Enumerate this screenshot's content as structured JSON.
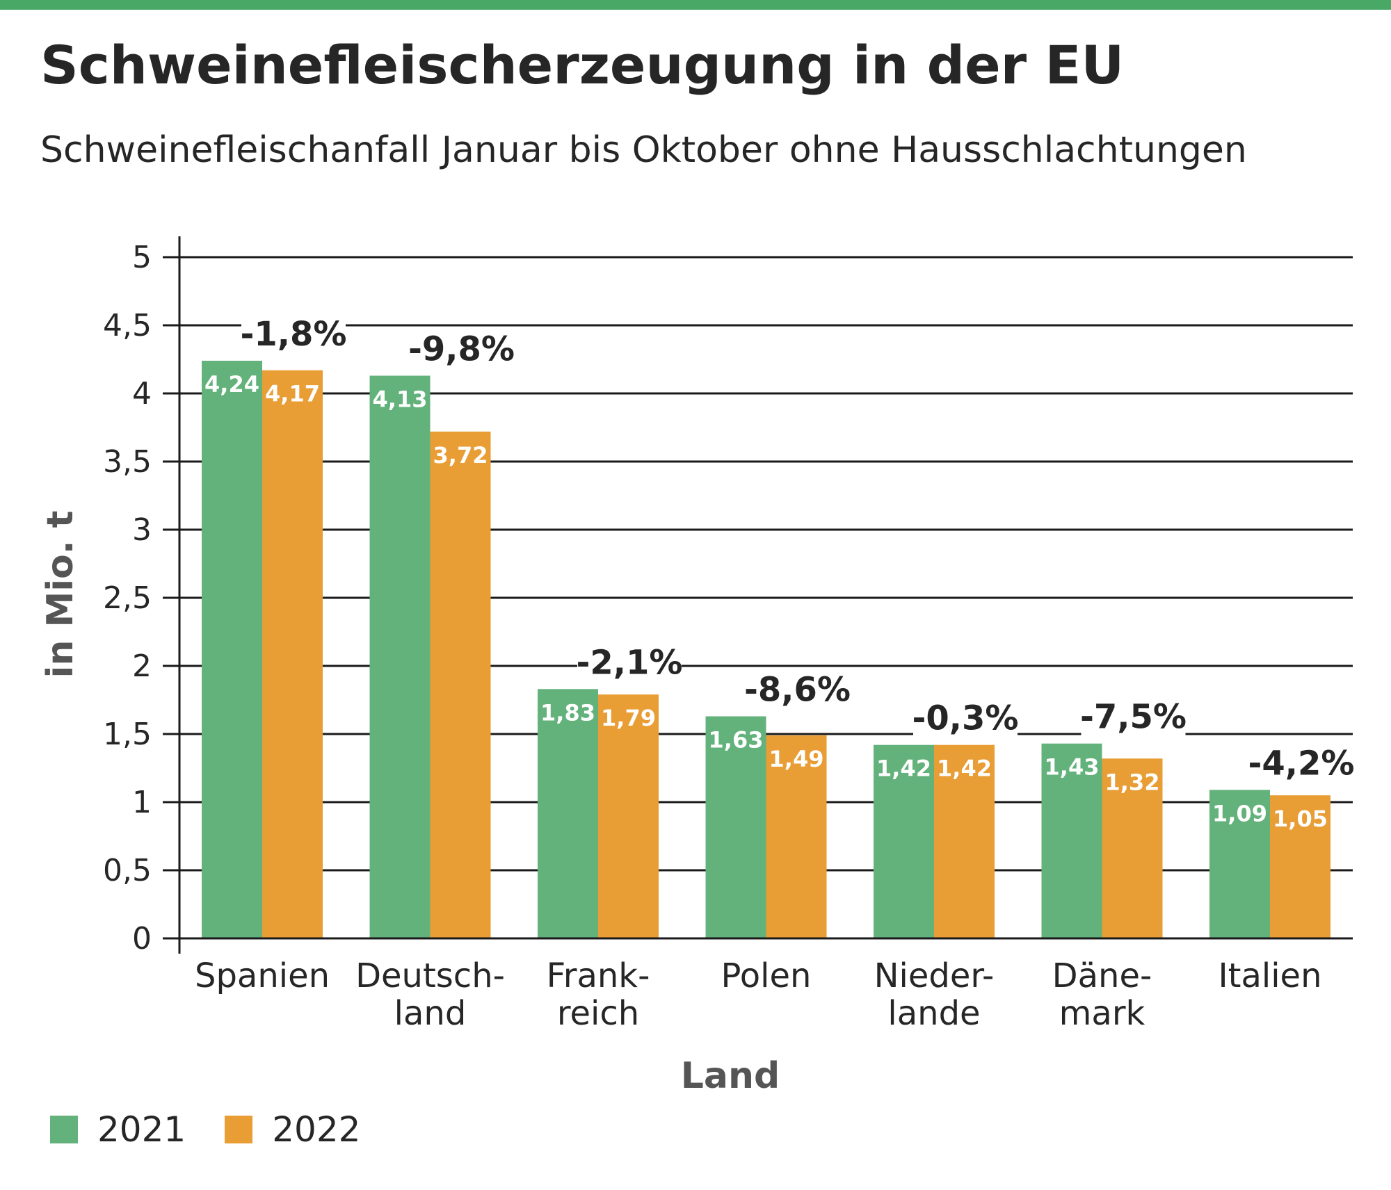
{
  "title": "Schweinefleischerzeugung in der EU",
  "subtitle": "Schweinefleischanfall Januar bis Oktober ohne Hausschlachtungen",
  "colors": {
    "accent": "#4aa866",
    "series_2021": "#63b27b",
    "series_2022": "#e89d35",
    "grid": "#1a1a1a"
  },
  "legend": [
    {
      "label": "2021",
      "color": "#63b27b"
    },
    {
      "label": "2022",
      "color": "#e89d35"
    }
  ],
  "chart_data": {
    "type": "bar",
    "title": "Schweinefleischerzeugung in der EU",
    "subtitle": "Schweinefleischanfall Januar bis Oktober ohne Hausschlachtungen",
    "xlabel": "Land",
    "ylabel": "in Mio. t",
    "ylim": [
      0,
      5
    ],
    "yticks": [
      "0",
      "0,5",
      "1",
      "1,5",
      "2",
      "2,5",
      "3",
      "3,5",
      "4",
      "4,5",
      "5"
    ],
    "grid": true,
    "legend_position": "bottom-left",
    "categories": [
      [
        "Spanien"
      ],
      [
        "Deutsch-",
        "land"
      ],
      [
        "Frank-",
        "reich"
      ],
      [
        "Polen"
      ],
      [
        "Nieder-",
        "lande"
      ],
      [
        "Däne-",
        "mark"
      ],
      [
        "Italien"
      ]
    ],
    "series": [
      {
        "name": "2021",
        "values": [
          4.24,
          4.13,
          1.83,
          1.63,
          1.42,
          1.43,
          1.09
        ],
        "labels": [
          "4,24",
          "4,13",
          "1,83",
          "1,63",
          "1,42",
          "1,43",
          "1,09"
        ]
      },
      {
        "name": "2022",
        "values": [
          4.17,
          3.72,
          1.79,
          1.49,
          1.42,
          1.32,
          1.05
        ],
        "labels": [
          "4,17",
          "3,72",
          "1,79",
          "1,49",
          "1,42",
          "1,32",
          "1,05"
        ]
      }
    ],
    "changes": [
      "-1,8%",
      "-9,8%",
      "-2,1%",
      "-8,6%",
      "-0,3%",
      "-7,5%",
      "-4,2%"
    ]
  }
}
